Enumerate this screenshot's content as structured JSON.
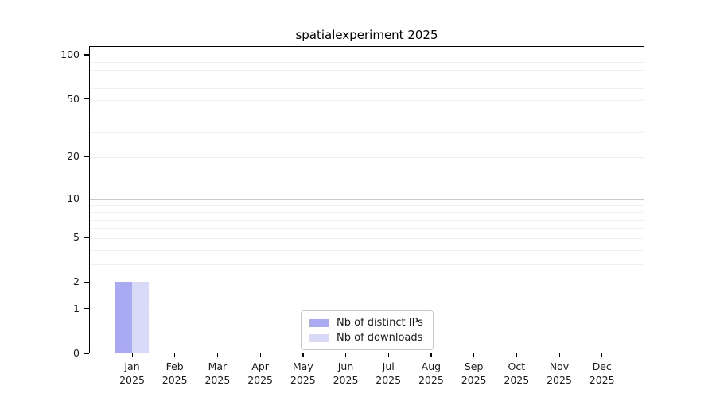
{
  "chart_data": {
    "type": "bar",
    "title": "spatialexperiment 2025",
    "categories": [
      "Jan 2025",
      "Feb 2025",
      "Mar 2025",
      "Apr 2025",
      "May 2025",
      "Jun 2025",
      "Jul 2025",
      "Aug 2025",
      "Sep 2025",
      "Oct 2025",
      "Nov 2025",
      "Dec 2025"
    ],
    "series": [
      {
        "name": "Nb of distinct IPs",
        "color": "#aaaaf2",
        "values": [
          2,
          0,
          0,
          0,
          0,
          0,
          0,
          0,
          0,
          0,
          0,
          0
        ]
      },
      {
        "name": "Nb of downloads",
        "color": "#d9d9f8",
        "values": [
          2,
          0,
          0,
          0,
          0,
          0,
          0,
          0,
          0,
          0,
          0,
          0
        ]
      }
    ],
    "xlabel": "",
    "ylabel": "",
    "y_scale": "log10(1+x)",
    "ylim": [
      0,
      115
    ],
    "y_ticks": [
      0,
      1,
      2,
      5,
      10,
      20,
      50,
      100
    ],
    "y_major_gridlines": [
      1,
      10,
      100
    ],
    "y_minor_gridlines": [
      2,
      3,
      4,
      5,
      6,
      7,
      8,
      9,
      20,
      30,
      40,
      50,
      60,
      70,
      80,
      90
    ],
    "grid": true,
    "legend_position": "lower center"
  },
  "legend": {
    "entries": [
      {
        "label": "Nb of distinct IPs",
        "color": "#aaaaf2"
      },
      {
        "label": "Nb of downloads",
        "color": "#d9d9f8"
      }
    ]
  },
  "colors": {
    "distinct_ips_bar": "#aaaaf2",
    "downloads_bar": "#d9d9f8",
    "major_gridline": "#cacaca",
    "minor_gridline": "#f0f0f0",
    "axis": "#000000",
    "background": "#ffffff"
  }
}
